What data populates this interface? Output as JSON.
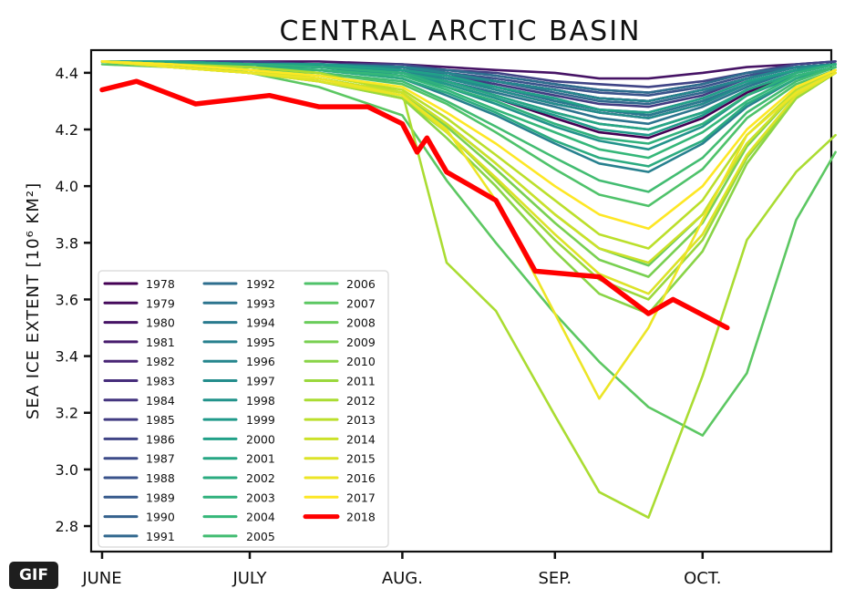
{
  "badge": "GIF",
  "chart_data": {
    "type": "line",
    "title": "CENTRAL ARCTIC BASIN",
    "ylabel": "SEA ICE EXTENT [10⁶ KM²]",
    "xlabel": "",
    "ylim": [
      2.71,
      4.48
    ],
    "yticks": [
      "2.8",
      "3.0",
      "3.2",
      "3.4",
      "3.6",
      "3.8",
      "4.0",
      "4.2",
      "4.4"
    ],
    "xticks": [
      {
        "label": "JUNE",
        "date": "06-01"
      },
      {
        "label": "JULY",
        "date": "07-01"
      },
      {
        "label": "AUG.",
        "date": "08-01"
      },
      {
        "label": "SEP.",
        "date": "09-01"
      },
      {
        "label": "OCT.",
        "date": "10-01"
      }
    ],
    "colormap": "viridis",
    "colormap_stops": [
      "#440154",
      "#482878",
      "#3e4989",
      "#31688e",
      "#26828e",
      "#1f9e89",
      "#35b779",
      "#6ece58",
      "#b5de2b",
      "#fde725"
    ],
    "highlight_color": "#ff0000",
    "legend_position": "lower-left",
    "grid": false,
    "x": [
      "06-01",
      "06-15",
      "07-01",
      "07-15",
      "08-01",
      "08-10",
      "08-20",
      "09-01",
      "09-10",
      "09-20",
      "10-01",
      "10-10",
      "10-20",
      "10-28"
    ],
    "series": [
      {
        "name": "1978",
        "values": [
          4.44,
          4.43,
          4.43,
          4.42,
          4.4,
          4.36,
          4.31,
          4.24,
          4.19,
          4.17,
          4.24,
          4.33,
          4.4,
          4.43
        ]
      },
      {
        "name": "1979",
        "values": [
          4.44,
          4.44,
          4.43,
          4.43,
          4.42,
          4.4,
          4.37,
          4.34,
          4.31,
          4.3,
          4.34,
          4.38,
          4.42,
          4.43
        ]
      },
      {
        "name": "1980",
        "values": [
          4.44,
          4.44,
          4.44,
          4.44,
          4.43,
          4.42,
          4.41,
          4.4,
          4.38,
          4.38,
          4.4,
          4.42,
          4.43,
          4.44
        ]
      },
      {
        "name": "1981",
        "values": [
          4.44,
          4.44,
          4.43,
          4.43,
          4.41,
          4.38,
          4.35,
          4.3,
          4.27,
          4.25,
          4.3,
          4.36,
          4.41,
          4.43
        ]
      },
      {
        "name": "1982",
        "values": [
          4.44,
          4.44,
          4.43,
          4.43,
          4.42,
          4.41,
          4.39,
          4.36,
          4.34,
          4.33,
          4.36,
          4.4,
          4.42,
          4.43
        ]
      },
      {
        "name": "1983",
        "values": [
          4.44,
          4.44,
          4.43,
          4.43,
          4.42,
          4.4,
          4.37,
          4.34,
          4.31,
          4.3,
          4.34,
          4.38,
          4.42,
          4.43
        ]
      },
      {
        "name": "1984",
        "values": [
          4.44,
          4.44,
          4.43,
          4.42,
          4.41,
          4.38,
          4.34,
          4.29,
          4.26,
          4.24,
          4.29,
          4.36,
          4.41,
          4.43
        ]
      },
      {
        "name": "1985",
        "values": [
          4.44,
          4.44,
          4.43,
          4.43,
          4.42,
          4.39,
          4.36,
          4.32,
          4.29,
          4.28,
          4.32,
          4.38,
          4.42,
          4.43
        ]
      },
      {
        "name": "1986",
        "values": [
          4.44,
          4.44,
          4.44,
          4.43,
          4.43,
          4.41,
          4.4,
          4.37,
          4.36,
          4.35,
          4.37,
          4.4,
          4.43,
          4.44
        ]
      },
      {
        "name": "1987",
        "values": [
          4.44,
          4.44,
          4.43,
          4.43,
          4.42,
          4.4,
          4.37,
          4.34,
          4.31,
          4.3,
          4.34,
          4.38,
          4.42,
          4.43
        ]
      },
      {
        "name": "1988",
        "values": [
          4.44,
          4.44,
          4.43,
          4.43,
          4.42,
          4.4,
          4.38,
          4.35,
          4.33,
          4.32,
          4.35,
          4.39,
          4.42,
          4.43
        ]
      },
      {
        "name": "1989",
        "values": [
          4.44,
          4.44,
          4.43,
          4.43,
          4.41,
          4.39,
          4.35,
          4.31,
          4.27,
          4.26,
          4.31,
          4.37,
          4.41,
          4.43
        ]
      },
      {
        "name": "1990",
        "values": [
          4.44,
          4.44,
          4.43,
          4.42,
          4.4,
          4.37,
          4.32,
          4.26,
          4.22,
          4.2,
          4.26,
          4.34,
          4.4,
          4.43
        ]
      },
      {
        "name": "1991",
        "values": [
          4.44,
          4.44,
          4.43,
          4.43,
          4.42,
          4.39,
          4.37,
          4.33,
          4.3,
          4.29,
          4.33,
          4.38,
          4.42,
          4.43
        ]
      },
      {
        "name": "1992",
        "values": [
          4.44,
          4.44,
          4.43,
          4.43,
          4.42,
          4.41,
          4.39,
          4.36,
          4.34,
          4.33,
          4.36,
          4.4,
          4.42,
          4.43
        ]
      },
      {
        "name": "1993",
        "values": [
          4.44,
          4.44,
          4.43,
          4.42,
          4.41,
          4.37,
          4.33,
          4.28,
          4.24,
          4.22,
          4.28,
          4.35,
          4.41,
          4.43
        ]
      },
      {
        "name": "1994",
        "values": [
          4.44,
          4.44,
          4.43,
          4.43,
          4.41,
          4.38,
          4.35,
          4.3,
          4.27,
          4.25,
          4.3,
          4.36,
          4.41,
          4.43
        ]
      },
      {
        "name": "1995",
        "values": [
          4.44,
          4.43,
          4.42,
          4.41,
          4.38,
          4.32,
          4.25,
          4.15,
          4.08,
          4.05,
          4.15,
          4.28,
          4.38,
          4.42
        ]
      },
      {
        "name": "1996",
        "values": [
          4.44,
          4.44,
          4.43,
          4.43,
          4.42,
          4.4,
          4.37,
          4.34,
          4.31,
          4.3,
          4.34,
          4.38,
          4.42,
          4.43
        ]
      },
      {
        "name": "1997",
        "values": [
          4.44,
          4.44,
          4.43,
          4.42,
          4.41,
          4.38,
          4.34,
          4.29,
          4.26,
          4.24,
          4.29,
          4.36,
          4.41,
          4.43
        ]
      },
      {
        "name": "1998",
        "values": [
          4.44,
          4.43,
          4.42,
          4.42,
          4.39,
          4.35,
          4.29,
          4.21,
          4.16,
          4.13,
          4.21,
          4.32,
          4.39,
          4.42
        ]
      },
      {
        "name": "1999",
        "values": [
          4.44,
          4.43,
          4.43,
          4.42,
          4.4,
          4.36,
          4.31,
          4.25,
          4.2,
          4.18,
          4.25,
          4.34,
          4.4,
          4.43
        ]
      },
      {
        "name": "2000",
        "values": [
          4.44,
          4.44,
          4.43,
          4.43,
          4.41,
          4.39,
          4.35,
          4.31,
          4.27,
          4.26,
          4.31,
          4.37,
          4.41,
          4.43
        ]
      },
      {
        "name": "2001",
        "values": [
          4.44,
          4.44,
          4.43,
          4.42,
          4.4,
          4.37,
          4.32,
          4.26,
          4.22,
          4.2,
          4.26,
          4.34,
          4.4,
          4.43
        ]
      },
      {
        "name": "2002",
        "values": [
          4.44,
          4.43,
          4.42,
          4.41,
          4.38,
          4.33,
          4.26,
          4.16,
          4.1,
          4.07,
          4.16,
          4.29,
          4.38,
          4.42
        ]
      },
      {
        "name": "2003",
        "values": [
          4.44,
          4.43,
          4.43,
          4.42,
          4.4,
          4.35,
          4.3,
          4.22,
          4.17,
          4.15,
          4.22,
          4.32,
          4.4,
          4.43
        ]
      },
      {
        "name": "2004",
        "values": [
          4.44,
          4.43,
          4.42,
          4.41,
          4.39,
          4.34,
          4.27,
          4.19,
          4.13,
          4.1,
          4.19,
          4.3,
          4.39,
          4.42
        ]
      },
      {
        "name": "2005",
        "values": [
          4.44,
          4.43,
          4.42,
          4.4,
          4.37,
          4.3,
          4.21,
          4.1,
          4.02,
          3.98,
          4.1,
          4.26,
          4.37,
          4.42
        ]
      },
      {
        "name": "2006",
        "values": [
          4.44,
          4.43,
          4.41,
          4.4,
          4.36,
          4.29,
          4.19,
          4.06,
          3.97,
          3.93,
          4.06,
          4.24,
          4.36,
          4.41
        ]
      },
      {
        "name": "2007",
        "values": [
          4.43,
          4.42,
          4.4,
          4.35,
          4.25,
          4.02,
          3.8,
          3.55,
          3.38,
          3.22,
          3.12,
          3.34,
          3.88,
          4.12
        ]
      },
      {
        "name": "2008",
        "values": [
          4.44,
          4.43,
          4.4,
          4.38,
          4.33,
          4.22,
          4.08,
          3.9,
          3.78,
          3.72,
          3.9,
          4.15,
          4.33,
          4.4
        ]
      },
      {
        "name": "2009",
        "values": [
          4.44,
          4.43,
          4.4,
          4.38,
          4.33,
          4.21,
          4.06,
          3.87,
          3.74,
          3.68,
          3.87,
          4.14,
          4.33,
          4.4
        ]
      },
      {
        "name": "2010",
        "values": [
          4.44,
          4.42,
          4.4,
          4.37,
          4.31,
          4.17,
          4.0,
          3.77,
          3.62,
          3.55,
          3.77,
          4.08,
          4.31,
          4.4
        ]
      },
      {
        "name": "2011",
        "values": [
          4.44,
          4.42,
          4.4,
          4.37,
          4.31,
          4.19,
          4.02,
          3.81,
          3.67,
          3.6,
          3.81,
          4.1,
          4.31,
          4.4
        ]
      },
      {
        "name": "2012",
        "values": [
          4.44,
          4.43,
          4.42,
          4.4,
          4.33,
          3.73,
          3.56,
          3.19,
          2.92,
          2.83,
          3.33,
          3.81,
          4.05,
          4.18
        ]
      },
      {
        "name": "2013",
        "values": [
          4.44,
          4.43,
          4.41,
          4.39,
          4.34,
          4.24,
          4.11,
          3.95,
          3.83,
          3.78,
          3.95,
          4.18,
          4.34,
          4.41
        ]
      },
      {
        "name": "2014",
        "values": [
          4.44,
          4.43,
          4.41,
          4.38,
          4.33,
          4.22,
          4.08,
          3.9,
          3.78,
          3.73,
          3.9,
          4.15,
          4.33,
          4.4
        ]
      },
      {
        "name": "2015",
        "values": [
          4.44,
          4.42,
          4.4,
          4.37,
          4.32,
          4.19,
          4.03,
          3.83,
          3.69,
          3.62,
          3.83,
          4.11,
          4.32,
          4.4
        ]
      },
      {
        "name": "2016",
        "values": [
          4.44,
          4.42,
          4.4,
          4.38,
          4.32,
          4.2,
          3.95,
          3.55,
          3.25,
          3.5,
          3.88,
          4.18,
          4.33,
          4.4
        ]
      },
      {
        "name": "2017",
        "values": [
          4.44,
          4.43,
          4.41,
          4.39,
          4.35,
          4.26,
          4.15,
          4.0,
          3.9,
          3.85,
          4.0,
          4.2,
          4.35,
          4.41
        ]
      },
      {
        "name": "2018",
        "highlight": true,
        "x": [
          "06-01",
          "06-08",
          "06-20",
          "07-05",
          "07-15",
          "07-25",
          "08-01",
          "08-04",
          "08-06",
          "08-10",
          "08-20",
          "08-28",
          "09-10",
          "09-20",
          "09-25",
          "10-06"
        ],
        "values": [
          4.34,
          4.37,
          4.29,
          4.32,
          4.28,
          4.28,
          4.22,
          4.12,
          4.17,
          4.05,
          3.95,
          3.7,
          3.68,
          3.55,
          3.6,
          3.5
        ]
      }
    ]
  }
}
